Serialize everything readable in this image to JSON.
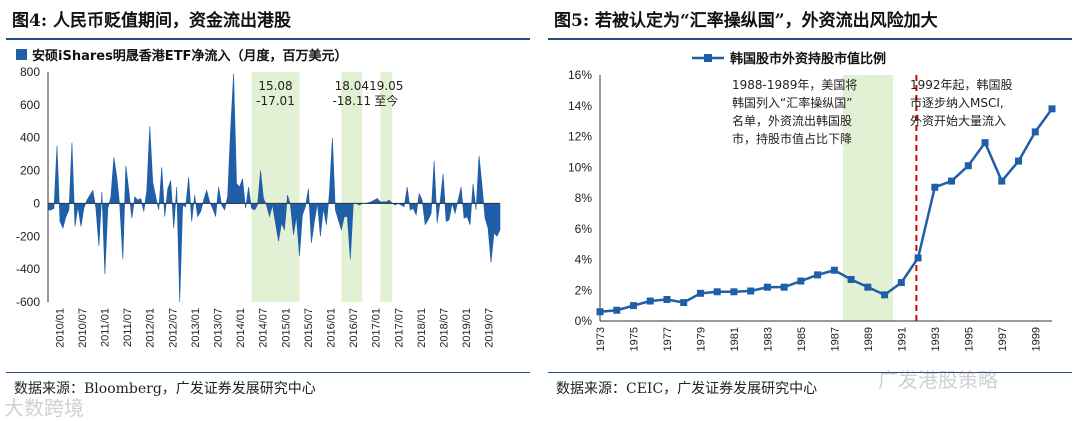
{
  "left": {
    "fig_label": "图4:",
    "title": "人民币贬值期间，资金流出港股",
    "source": "数据来源：Bloomberg，广发证券发展研究中心",
    "chart_data": {
      "type": "area",
      "title": "安硕iShares明晟香港ETF净流入（月度，百万美元）",
      "legend": "安硕iShares明晟香港ETF净流入（月度，百万美元）",
      "ylim": [
        -600,
        800
      ],
      "yticks": [
        "800",
        "600",
        "400",
        "200",
        "0",
        "-200",
        "-400",
        "-600"
      ],
      "ytick_values": [
        800,
        600,
        400,
        200,
        0,
        -200,
        -400,
        -600
      ],
      "xticks": [
        "2010/01",
        "2010/07",
        "2011/01",
        "2011/07",
        "2012/01",
        "2012/07",
        "2013/01",
        "2013/07",
        "2014/01",
        "2014/07",
        "2015/01",
        "2015/07",
        "2016/01",
        "2016/07",
        "2017/01",
        "2017/07",
        "2018/01",
        "2018/07",
        "2019/01",
        "2019/07"
      ],
      "values": [
        -40,
        -40,
        -30,
        350,
        -110,
        -150,
        -80,
        -40,
        370,
        -140,
        -20,
        -140,
        -30,
        20,
        50,
        80,
        -30,
        -260,
        70,
        -430,
        -30,
        40,
        280,
        160,
        -20,
        -340,
        230,
        80,
        -90,
        40,
        20,
        30,
        -50,
        80,
        470,
        130,
        40,
        -40,
        220,
        -80,
        90,
        140,
        -150,
        100,
        -600,
        -10,
        -20,
        160,
        -110,
        50,
        -80,
        -50,
        20,
        80,
        10,
        -30,
        -80,
        100,
        -10,
        -40,
        40,
        450,
        790,
        120,
        100,
        150,
        -30,
        100,
        -30,
        -40,
        -10,
        200,
        30,
        -10,
        -80,
        -10,
        -120,
        -230,
        -120,
        -160,
        50,
        -10,
        -190,
        -80,
        -320,
        -70,
        -20,
        90,
        -240,
        -110,
        0,
        -200,
        -30,
        -130,
        60,
        400,
        -40,
        -100,
        -160,
        -80,
        -80,
        -340,
        0,
        0,
        -10,
        0,
        0,
        5,
        10,
        20,
        30,
        10,
        10,
        10,
        20,
        0,
        -10,
        0,
        -10,
        -20,
        100,
        -40,
        -30,
        -70,
        60,
        20,
        -130,
        -100,
        -60,
        260,
        -120,
        10,
        180,
        -110,
        -100,
        0,
        -60,
        20,
        100,
        -90,
        -80,
        -130,
        120,
        -40,
        290,
        110,
        -90,
        -150,
        -360,
        -180,
        -200,
        -160
      ],
      "shaded": [
        {
          "start_index": 68,
          "end_index": 84,
          "label1": "15.08",
          "label2": "-17.01"
        },
        {
          "start_index": 98,
          "end_index": 105,
          "label1": "18.04",
          "label2": "-18.11"
        },
        {
          "start_index": 111,
          "end_index": 115,
          "label1": "19.05",
          "label2": "至今"
        }
      ],
      "color": "#1f5fa8",
      "shade_color": "#e2f0d4"
    }
  },
  "right": {
    "fig_label": "图5:",
    "title": "若被认定为“汇率操纵国”，外资流出风险加大",
    "source": "数据来源：CEIC，广发证券发展研究中心",
    "chart_data": {
      "type": "line",
      "title": "韩国股市外资持股市值比例",
      "legend": "韩国股市外资持股市值比例",
      "ylim": [
        0,
        16
      ],
      "yticks": [
        "16%",
        "14%",
        "12%",
        "10%",
        "8%",
        "6%",
        "4%",
        "2%",
        "0%"
      ],
      "ytick_values": [
        16,
        14,
        12,
        10,
        8,
        6,
        4,
        2,
        0
      ],
      "x": [
        1973,
        1974,
        1975,
        1976,
        1977,
        1978,
        1979,
        1980,
        1981,
        1982,
        1983,
        1984,
        1985,
        1986,
        1987,
        1988,
        1989,
        1990,
        1991,
        1992,
        1993,
        1994,
        1995,
        1996,
        1997,
        1998,
        1999,
        2000
      ],
      "xticks": [
        "1973",
        "1975",
        "1977",
        "1979",
        "1981",
        "1983",
        "1985",
        "1987",
        "1989",
        "1991",
        "1993",
        "1995",
        "1997",
        "1999"
      ],
      "values": [
        0.6,
        0.7,
        1.0,
        1.3,
        1.4,
        1.2,
        1.8,
        1.9,
        1.9,
        1.95,
        2.2,
        2.2,
        2.6,
        3.0,
        3.3,
        2.7,
        2.2,
        1.7,
        2.5,
        4.1,
        8.7,
        9.1,
        10.1,
        11.6,
        9.1,
        10.4,
        12.3,
        13.8
      ],
      "shaded": {
        "start_x": 1987.5,
        "end_x": 1990.5
      },
      "vline_x": 1991.9,
      "annot1": [
        "1988-1989年，美国将",
        "韩国列入“汇率操纵国”",
        "名单，外资流出韩国股",
        "市，持股市值占比下降"
      ],
      "annot2": [
        "1992年起，韩国股",
        "市逐步纳入MSCI,",
        "外资开始大量流入"
      ],
      "color": "#1f5fa8",
      "vline_color": "#d40000",
      "shade_color": "#e2f0d4"
    }
  },
  "watermark_left": "大数跨境",
  "watermark_right": "广发港股策略"
}
